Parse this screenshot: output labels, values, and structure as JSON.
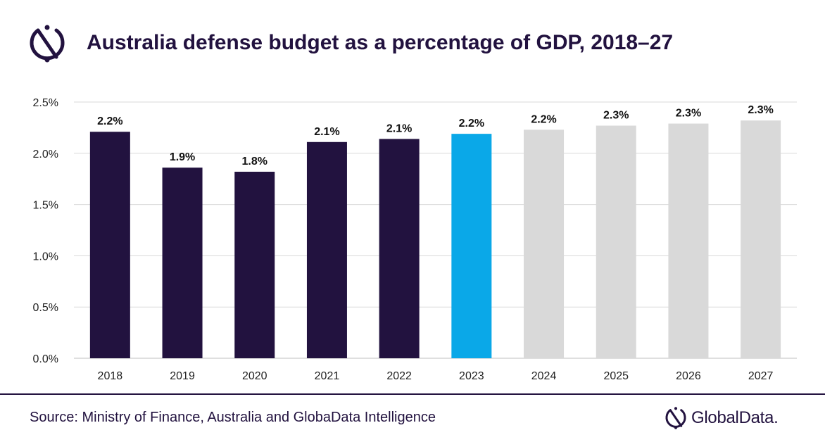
{
  "header": {
    "title": "Australia defense budget as a percentage of GDP, 2018–27",
    "logo_icon": "globaldata-logo-icon"
  },
  "footer": {
    "source": "Source: Ministry of Finance, Australia and GlobaData Intelligence",
    "brand": "GlobalData."
  },
  "colors": {
    "actual": "#22123f",
    "current": "#0aa8e8",
    "forecast": "#d9d9d9",
    "grid": "#d9d9d9",
    "text": "#22123f"
  },
  "chart_data": {
    "type": "bar",
    "title": "Australia defense budget as a percentage of GDP, 2018–27",
    "xlabel": "",
    "ylabel": "",
    "ylim": [
      0,
      2.5
    ],
    "yticks": [
      "0.0%",
      "0.5%",
      "1.0%",
      "1.5%",
      "2.0%",
      "2.5%"
    ],
    "ytick_values": [
      0,
      0.5,
      1.0,
      1.5,
      2.0,
      2.5
    ],
    "grid": true,
    "categories": [
      "2018",
      "2019",
      "2020",
      "2021",
      "2022",
      "2023",
      "2024",
      "2025",
      "2026",
      "2027"
    ],
    "values": [
      2.21,
      1.86,
      1.82,
      2.11,
      2.14,
      2.19,
      2.23,
      2.27,
      2.29,
      2.32
    ],
    "labels": [
      "2.2%",
      "1.9%",
      "1.8%",
      "2.1%",
      "2.1%",
      "2.2%",
      "2.2%",
      "2.3%",
      "2.3%",
      "2.3%"
    ],
    "bar_status": [
      "actual",
      "actual",
      "actual",
      "actual",
      "actual",
      "current",
      "forecast",
      "forecast",
      "forecast",
      "forecast"
    ]
  }
}
